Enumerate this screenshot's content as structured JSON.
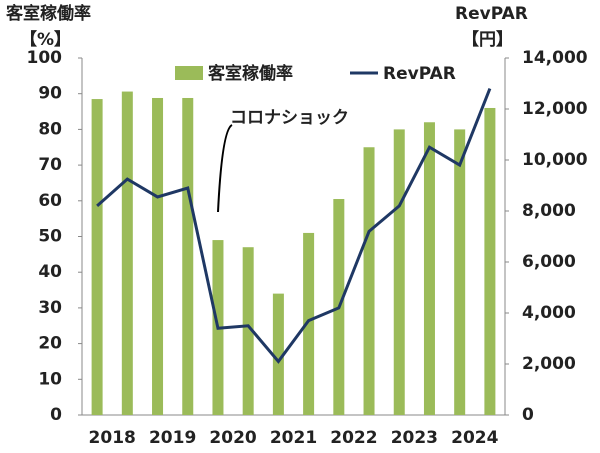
{
  "chart_data": {
    "type": "bar_line",
    "y_title": "客室稼働率",
    "y_unit": "【%】",
    "y2_title": "RevPAR",
    "y2_unit": "【円】",
    "annotation": "コロナショック",
    "categories": [
      "2018",
      null,
      "2019",
      null,
      "2020",
      null,
      "2021",
      null,
      "2022",
      null,
      "2023",
      null,
      "2024",
      null
    ],
    "series": [
      {
        "name": "客室稼働率",
        "color": "#9bbb59",
        "type": "bar",
        "values": [
          88.5,
          90.6,
          88.8,
          88.8,
          49,
          47,
          34,
          51,
          60.5,
          75,
          80,
          82,
          80,
          86
        ]
      },
      {
        "name": "RevPAR",
        "color": "#1f3864",
        "type": "line",
        "axis": "y2",
        "values": [
          8200,
          9250,
          8550,
          8900,
          3400,
          3500,
          2100,
          3700,
          4200,
          7200,
          8200,
          10500,
          9800,
          12800
        ]
      }
    ],
    "ylim": [
      0,
      100
    ],
    "yticks": [
      0,
      10,
      20,
      30,
      40,
      50,
      60,
      70,
      80,
      90,
      100
    ],
    "y2lim": [
      0,
      14000
    ],
    "y2ticks": [
      0,
      {
        "value": 2000,
        "label": "2,000"
      },
      {
        "value": 4000,
        "label": "4,000"
      },
      {
        "value": 6000,
        "label": "6,000"
      },
      {
        "value": 8000,
        "label": "8,000"
      },
      {
        "value": 10000,
        "label": "10,000"
      },
      {
        "value": 12000,
        "label": "12,000"
      },
      {
        "value": 14000,
        "label": "14,000"
      }
    ],
    "legend": "top"
  }
}
